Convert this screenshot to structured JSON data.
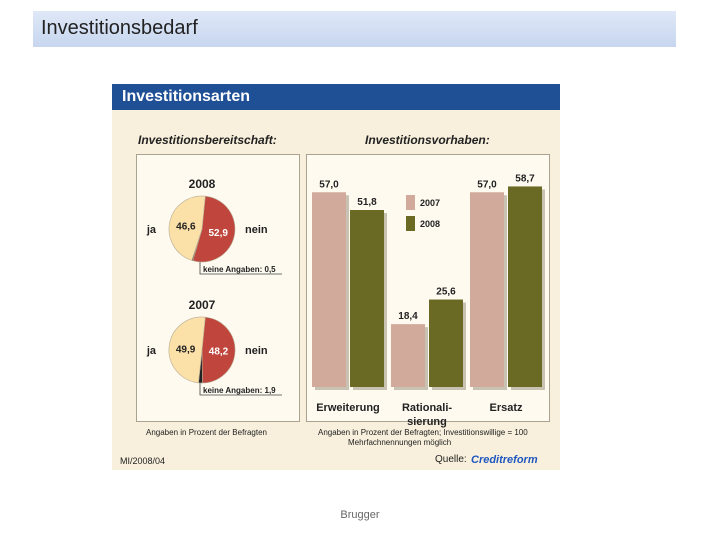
{
  "slide": {
    "title": "Investitionsbedarf",
    "footer": "Brugger"
  },
  "figure": {
    "banner": "Investitionsarten",
    "left_heading": "Investitionsbereitschaft:",
    "right_heading": "Investitionsvorhaben:",
    "left_note": "Angaben in Prozent der Befragten",
    "right_note_1": "Angaben in Prozent der Befragten; Investitionswillige = 100",
    "right_note_2": "Mehrfachnennungen möglich",
    "code": "MI/2008/04",
    "source_label": "Quelle:",
    "source_brand": "Creditreform"
  },
  "colors": {
    "ja": "#fbe0a8",
    "nein": "#c0463d",
    "y2007": "#d1aa9b",
    "y2008": "#6b6a24",
    "banner": "#1f4f95"
  },
  "chart_data": [
    {
      "type": "pie",
      "title": "2008",
      "labels": [
        "ja",
        "nein",
        "keine Angaben"
      ],
      "values": [
        46.6,
        52.9,
        0.5
      ],
      "value_labels": [
        "46,6",
        "52,9",
        "0,5"
      ],
      "outer_labels": {
        "ja": "ja",
        "nein": "nein"
      },
      "callout": "keine Angaben: 0,5"
    },
    {
      "type": "pie",
      "title": "2007",
      "labels": [
        "ja",
        "nein",
        "keine Angaben"
      ],
      "values": [
        49.9,
        48.2,
        1.9
      ],
      "value_labels": [
        "49,9",
        "48,2",
        "1,9"
      ],
      "outer_labels": {
        "ja": "ja",
        "nein": "nein"
      },
      "callout": "keine Angaben: 1,9"
    },
    {
      "type": "bar",
      "categories": [
        "Erweiterung",
        "Rationalisierung",
        "Ersatz"
      ],
      "category_labels": [
        [
          "Erweiterung"
        ],
        [
          "Rationali-",
          "sierung"
        ],
        [
          "Ersatz"
        ]
      ],
      "series": [
        {
          "name": "2007",
          "values": [
            57.0,
            18.4,
            57.0
          ],
          "labels": [
            "57,0",
            "18,4",
            "57,0"
          ]
        },
        {
          "name": "2008",
          "values": [
            51.8,
            25.6,
            58.7
          ],
          "labels": [
            "51,8",
            "25,6",
            "58,7"
          ]
        }
      ],
      "ylim": [
        0,
        60
      ],
      "legend": "top-center"
    }
  ]
}
